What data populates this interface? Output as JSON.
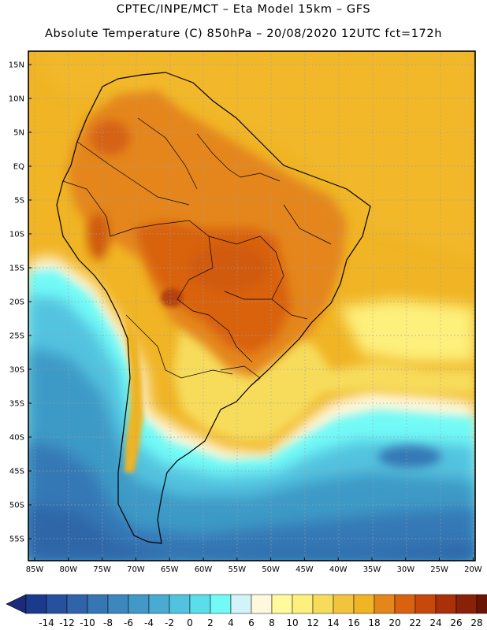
{
  "header": {
    "title_line1": "CPTEC/INPE/MCT –  Eta Model 15km – GFS",
    "title_line2": "Absolute Temperature (C) 850hPa – 20/08/2020 12UTC fct=172h"
  },
  "map": {
    "region": "South America",
    "variable": "Absolute Temperature (C) 850hPa",
    "lat_range": [
      -58,
      17
    ],
    "lon_range": [
      -86,
      -20
    ],
    "lat_ticks": [
      {
        "value": 15,
        "label": "15N"
      },
      {
        "value": 10,
        "label": "10N"
      },
      {
        "value": 5,
        "label": "5N"
      },
      {
        "value": 0,
        "label": "EQ"
      },
      {
        "value": -5,
        "label": "5S"
      },
      {
        "value": -10,
        "label": "10S"
      },
      {
        "value": -15,
        "label": "15S"
      },
      {
        "value": -20,
        "label": "20S"
      },
      {
        "value": -25,
        "label": "25S"
      },
      {
        "value": -30,
        "label": "30S"
      },
      {
        "value": -35,
        "label": "35S"
      },
      {
        "value": -40,
        "label": "40S"
      },
      {
        "value": -45,
        "label": "45S"
      },
      {
        "value": -50,
        "label": "50S"
      },
      {
        "value": -55,
        "label": "55S"
      }
    ],
    "lon_ticks": [
      {
        "value": -85,
        "label": "85W"
      },
      {
        "value": -80,
        "label": "80W"
      },
      {
        "value": -75,
        "label": "75W"
      },
      {
        "value": -70,
        "label": "70W"
      },
      {
        "value": -65,
        "label": "65W"
      },
      {
        "value": -60,
        "label": "60W"
      },
      {
        "value": -55,
        "label": "55W"
      },
      {
        "value": -50,
        "label": "50W"
      },
      {
        "value": -45,
        "label": "45W"
      },
      {
        "value": -40,
        "label": "40W"
      },
      {
        "value": -35,
        "label": "35W"
      },
      {
        "value": -30,
        "label": "30W"
      },
      {
        "value": -25,
        "label": "25W"
      },
      {
        "value": -20,
        "label": "20W"
      }
    ],
    "colors": {
      "warm_ocean": "#f0b424",
      "land_hot": "#e27c1a",
      "land_core": "#d9620f",
      "land_peak": "#b44208",
      "andes": "#c7540e",
      "cold_mid": "#3c9ac6",
      "cold_deep": "#2d6aa8"
    }
  },
  "colorbar": {
    "labels": [
      "-14",
      "-12",
      "-10",
      "-8",
      "-6",
      "-4",
      "-2",
      "0",
      "2",
      "4",
      "6",
      "8",
      "10",
      "12",
      "14",
      "16",
      "18",
      "20",
      "22",
      "24",
      "26",
      "28"
    ],
    "colors": [
      "#1a3a8e",
      "#27509e",
      "#2f64aa",
      "#3676b4",
      "#3c88be",
      "#4298c6",
      "#49abd2",
      "#52c3df",
      "#5adeea",
      "#72faf7",
      "#d2f4f8",
      "#fff8dc",
      "#fffa9c",
      "#fdf07c",
      "#f7dc5c",
      "#f2c43e",
      "#f0b424",
      "#e4861a",
      "#d9620f",
      "#c8480c",
      "#aa300a",
      "#892008",
      "#6a1406"
    ],
    "low_arrow_color": "#1b2b7a",
    "high_arrow_color": "#6a0a2e"
  }
}
